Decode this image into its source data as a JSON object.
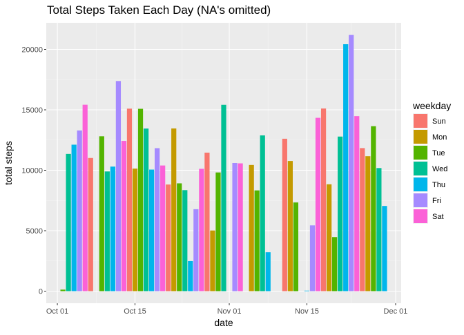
{
  "chart_data": {
    "type": "bar",
    "title": "Total Steps Taken Each Day (NA's omitted)",
    "xlabel": "date",
    "ylabel": "total steps",
    "xlim": [
      "2012-09-29",
      "2012-12-02"
    ],
    "ylim": [
      0,
      22000
    ],
    "x_ticks": [
      {
        "date": "2012-10-01",
        "label": "Oct 01"
      },
      {
        "date": "2012-10-15",
        "label": "Oct 15"
      },
      {
        "date": "2012-11-01",
        "label": "Nov 01"
      },
      {
        "date": "2012-11-15",
        "label": "Nov 15"
      },
      {
        "date": "2012-12-01",
        "label": "Dec 01"
      }
    ],
    "y_ticks": [
      0,
      5000,
      10000,
      15000,
      20000
    ],
    "grid": true,
    "legend": {
      "title": "weekday",
      "position": "right",
      "entries": [
        {
          "label": "Sun",
          "color": "#F8766D"
        },
        {
          "label": "Mon",
          "color": "#C49A00"
        },
        {
          "label": "Tue",
          "color": "#53B400"
        },
        {
          "label": "Wed",
          "color": "#00C094"
        },
        {
          "label": "Thu",
          "color": "#00B6EB"
        },
        {
          "label": "Fri",
          "color": "#A58AFF"
        },
        {
          "label": "Sat",
          "color": "#FB61D7"
        }
      ]
    },
    "bars": [
      {
        "date": "2012-10-02",
        "weekday": "Tue",
        "value": 126
      },
      {
        "date": "2012-10-03",
        "weekday": "Wed",
        "value": 11352
      },
      {
        "date": "2012-10-04",
        "weekday": "Thu",
        "value": 12116
      },
      {
        "date": "2012-10-05",
        "weekday": "Fri",
        "value": 13294
      },
      {
        "date": "2012-10-06",
        "weekday": "Sat",
        "value": 15420
      },
      {
        "date": "2012-10-07",
        "weekday": "Sun",
        "value": 11015
      },
      {
        "date": "2012-10-09",
        "weekday": "Tue",
        "value": 12811
      },
      {
        "date": "2012-10-10",
        "weekday": "Wed",
        "value": 9900
      },
      {
        "date": "2012-10-11",
        "weekday": "Thu",
        "value": 10304
      },
      {
        "date": "2012-10-12",
        "weekday": "Fri",
        "value": 17382
      },
      {
        "date": "2012-10-13",
        "weekday": "Sat",
        "value": 12426
      },
      {
        "date": "2012-10-14",
        "weekday": "Sun",
        "value": 15098
      },
      {
        "date": "2012-10-15",
        "weekday": "Mon",
        "value": 10139
      },
      {
        "date": "2012-10-16",
        "weekday": "Tue",
        "value": 15084
      },
      {
        "date": "2012-10-17",
        "weekday": "Wed",
        "value": 13452
      },
      {
        "date": "2012-10-18",
        "weekday": "Thu",
        "value": 10056
      },
      {
        "date": "2012-10-19",
        "weekday": "Fri",
        "value": 11829
      },
      {
        "date": "2012-10-20",
        "weekday": "Sat",
        "value": 10395
      },
      {
        "date": "2012-10-21",
        "weekday": "Sun",
        "value": 8821
      },
      {
        "date": "2012-10-22",
        "weekday": "Mon",
        "value": 13460
      },
      {
        "date": "2012-10-23",
        "weekday": "Tue",
        "value": 8918
      },
      {
        "date": "2012-10-24",
        "weekday": "Wed",
        "value": 8355
      },
      {
        "date": "2012-10-25",
        "weekday": "Thu",
        "value": 2492
      },
      {
        "date": "2012-10-26",
        "weekday": "Fri",
        "value": 6778
      },
      {
        "date": "2012-10-27",
        "weekday": "Sat",
        "value": 10119
      },
      {
        "date": "2012-10-28",
        "weekday": "Sun",
        "value": 11458
      },
      {
        "date": "2012-10-29",
        "weekday": "Mon",
        "value": 5018
      },
      {
        "date": "2012-10-30",
        "weekday": "Tue",
        "value": 9819
      },
      {
        "date": "2012-10-31",
        "weekday": "Wed",
        "value": 15414
      },
      {
        "date": "2012-11-02",
        "weekday": "Fri",
        "value": 10600
      },
      {
        "date": "2012-11-03",
        "weekday": "Sat",
        "value": 10571
      },
      {
        "date": "2012-11-05",
        "weekday": "Mon",
        "value": 10439
      },
      {
        "date": "2012-11-06",
        "weekday": "Tue",
        "value": 8334
      },
      {
        "date": "2012-11-07",
        "weekday": "Wed",
        "value": 12883
      },
      {
        "date": "2012-11-08",
        "weekday": "Thu",
        "value": 3219
      },
      {
        "date": "2012-11-11",
        "weekday": "Sun",
        "value": 12608
      },
      {
        "date": "2012-11-12",
        "weekday": "Mon",
        "value": 10765
      },
      {
        "date": "2012-11-13",
        "weekday": "Tue",
        "value": 7336
      },
      {
        "date": "2012-11-15",
        "weekday": "Thu",
        "value": 41
      },
      {
        "date": "2012-11-16",
        "weekday": "Fri",
        "value": 5441
      },
      {
        "date": "2012-11-17",
        "weekday": "Sat",
        "value": 14339
      },
      {
        "date": "2012-11-18",
        "weekday": "Sun",
        "value": 15110
      },
      {
        "date": "2012-11-19",
        "weekday": "Mon",
        "value": 8841
      },
      {
        "date": "2012-11-20",
        "weekday": "Tue",
        "value": 4472
      },
      {
        "date": "2012-11-21",
        "weekday": "Wed",
        "value": 12787
      },
      {
        "date": "2012-11-22",
        "weekday": "Thu",
        "value": 20427
      },
      {
        "date": "2012-11-23",
        "weekday": "Fri",
        "value": 21194
      },
      {
        "date": "2012-11-24",
        "weekday": "Sat",
        "value": 14478
      },
      {
        "date": "2012-11-25",
        "weekday": "Sun",
        "value": 11834
      },
      {
        "date": "2012-11-26",
        "weekday": "Mon",
        "value": 11162
      },
      {
        "date": "2012-11-27",
        "weekday": "Tue",
        "value": 13646
      },
      {
        "date": "2012-11-28",
        "weekday": "Wed",
        "value": 10183
      },
      {
        "date": "2012-11-29",
        "weekday": "Thu",
        "value": 7047
      }
    ]
  }
}
